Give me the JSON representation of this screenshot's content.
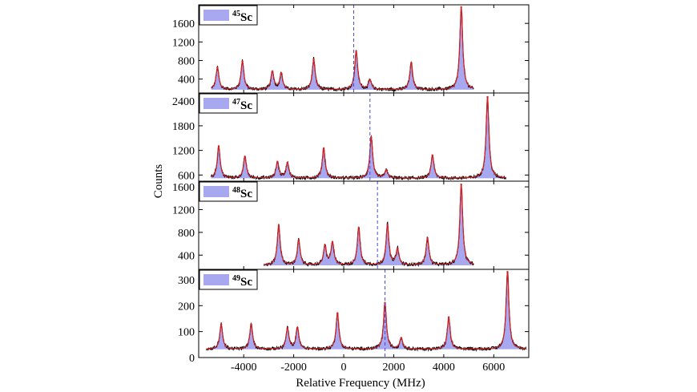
{
  "figure": {
    "xlabel": "Relative Frequency (MHz)",
    "ylabel": "Counts",
    "colors": {
      "frame": "#000000",
      "data_line": "#000000",
      "fit_line": "#d42020",
      "fill": "#a8a8f0",
      "center_line": "#4a4ad8"
    }
  },
  "chart_data": [
    {
      "type": "line",
      "isotope_mass": "45",
      "isotope_symbol": "Sc",
      "xlim": [
        -5800,
        7400
      ],
      "ylim": [
        100,
        2000
      ],
      "yticks": [
        "400",
        "800",
        "1200",
        "1600"
      ],
      "xticks": [],
      "baseline": 170,
      "x_start": -5300,
      "x_end": 5200,
      "center_line_x": 400,
      "peaks": [
        {
          "x": -5050,
          "y": 650
        },
        {
          "x": -4050,
          "y": 780
        },
        {
          "x": -2850,
          "y": 560
        },
        {
          "x": -2500,
          "y": 520
        },
        {
          "x": -1200,
          "y": 820
        },
        {
          "x": 500,
          "y": 1000
        },
        {
          "x": 1050,
          "y": 380
        },
        {
          "x": 2700,
          "y": 750
        },
        {
          "x": 4700,
          "y": 1950
        }
      ],
      "series": [
        {
          "name": "",
          "values": []
        }
      ]
    },
    {
      "type": "line",
      "isotope_mass": "47",
      "isotope_symbol": "Sc",
      "xlim": [
        -5800,
        7400
      ],
      "ylim": [
        450,
        2600
      ],
      "yticks": [
        "600",
        "1200",
        "1800",
        "2400"
      ],
      "xticks": [],
      "baseline": 520,
      "x_start": -5300,
      "x_end": 6500,
      "center_line_x": 1050,
      "peaks": [
        {
          "x": -5000,
          "y": 1300
        },
        {
          "x": -3950,
          "y": 1050
        },
        {
          "x": -2650,
          "y": 920
        },
        {
          "x": -2250,
          "y": 900
        },
        {
          "x": -800,
          "y": 1250
        },
        {
          "x": 1100,
          "y": 1520
        },
        {
          "x": 1700,
          "y": 720
        },
        {
          "x": 3550,
          "y": 1080
        },
        {
          "x": 5750,
          "y": 2500
        }
      ]
    },
    {
      "type": "line",
      "isotope_mass": "48",
      "isotope_symbol": "Sc",
      "xlim": [
        -5800,
        7400
      ],
      "ylim": [
        150,
        1700
      ],
      "yticks": [
        "400",
        "800",
        "1200",
        "1600"
      ],
      "xticks": [],
      "baseline": 220,
      "x_start": -3200,
      "x_end": 5200,
      "center_line_x": 1350,
      "peaks": [
        {
          "x": -2600,
          "y": 920
        },
        {
          "x": -1800,
          "y": 660
        },
        {
          "x": -750,
          "y": 560
        },
        {
          "x": -450,
          "y": 620
        },
        {
          "x": 600,
          "y": 880
        },
        {
          "x": 1750,
          "y": 920
        },
        {
          "x": 2150,
          "y": 500
        },
        {
          "x": 3350,
          "y": 700
        },
        {
          "x": 4700,
          "y": 1640
        }
      ]
    },
    {
      "type": "line",
      "isotope_mass": "49",
      "isotope_symbol": "Sc",
      "xlim": [
        -5800,
        7400
      ],
      "ylim": [
        0,
        340
      ],
      "yticks": [
        "0",
        "100",
        "200",
        "300"
      ],
      "xticks": [
        "-4000",
        "-2000",
        "0",
        "2000",
        "4000",
        "6000"
      ],
      "baseline": 32,
      "x_start": -5500,
      "x_end": 7300,
      "center_line_x": 1650,
      "peaks": [
        {
          "x": -4900,
          "y": 128
        },
        {
          "x": -3700,
          "y": 128
        },
        {
          "x": -2250,
          "y": 112
        },
        {
          "x": -1850,
          "y": 115
        },
        {
          "x": -250,
          "y": 170
        },
        {
          "x": 1650,
          "y": 210
        },
        {
          "x": 2300,
          "y": 75
        },
        {
          "x": 4200,
          "y": 155
        },
        {
          "x": 6550,
          "y": 330
        }
      ]
    }
  ]
}
